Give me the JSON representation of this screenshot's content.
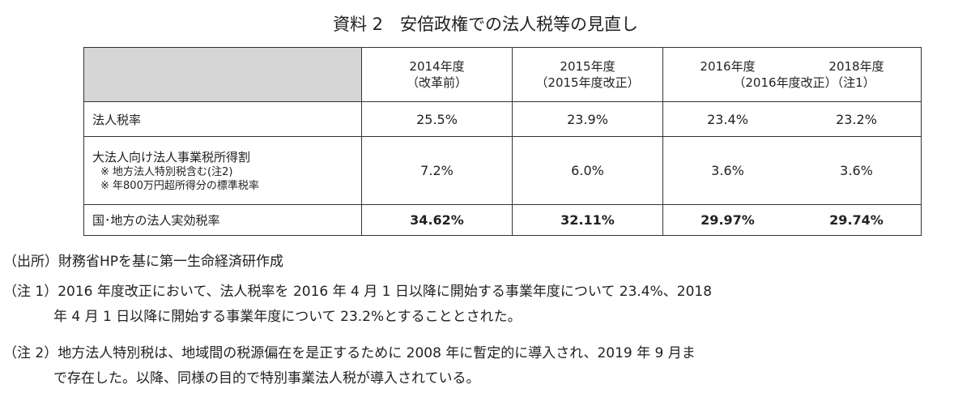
{
  "title": "資料 2　安倍政権での法人税等の見直し",
  "table": {
    "header": [
      {
        "line1": "2014年度",
        "line2": "（改革前）"
      },
      {
        "line1": "2015年度",
        "line2": "（2015年度改正）"
      },
      {
        "years": [
          "2016年度",
          "2018年度"
        ],
        "line2": "（2016年度改正）（注1）"
      }
    ],
    "rows": [
      {
        "label": "法人税率",
        "values": [
          "25.5%",
          "23.9%",
          "23.4%",
          "23.2%"
        ]
      },
      {
        "label": "大法人向け法人事業税所得割",
        "notes": [
          "※ 地方法人特別税含む(注2)",
          "※ 年800万円超所得分の標準税率"
        ],
        "values": [
          "7.2%",
          "6.0%",
          "3.6%",
          "3.6%"
        ]
      },
      {
        "label": "国･地方の法人実効税率",
        "values": [
          "34.62%",
          "32.11%",
          "29.97%",
          "29.74%"
        ]
      }
    ]
  },
  "source": "（出所）財務省HPを基に第一生命経済研作成",
  "notes": [
    {
      "label": "（注 1）",
      "lines": [
        "2016 年度改正において、法人税率を 2016 年 4 月 1 日以降に開始する事業年度について 23.4%、2018",
        "年 4 月 1 日以降に開始する事業年度について 23.2%とすることとされた。"
      ]
    },
    {
      "label": "（注 2）",
      "lines": [
        "地方法人特別税は、地域間の税源偏在を是正するために 2008 年に暫定的に導入され、2019 年 9 月ま",
        "で存在した。以降、同様の目的で特別事業法人税が導入されている。"
      ]
    }
  ]
}
